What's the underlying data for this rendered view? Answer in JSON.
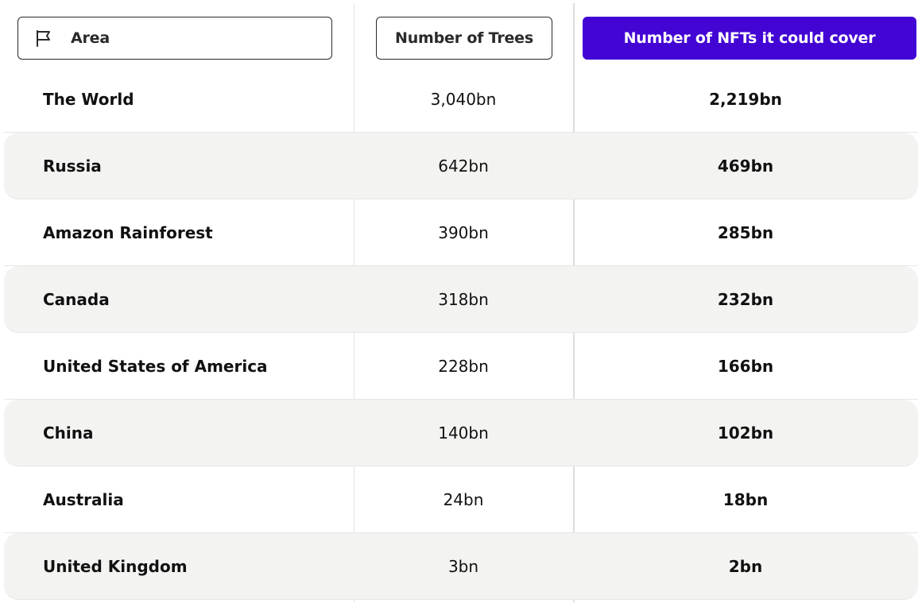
{
  "header": {
    "area_label": "Area",
    "area_icon": "flag-icon",
    "trees_label": "Number of Trees",
    "nfts_label": "Number of NFTs it could cover",
    "accent_color": "#4305d4"
  },
  "rows": [
    {
      "area": "The World",
      "trees": "3,040bn",
      "nfts": "2,219bn"
    },
    {
      "area": "Russia",
      "trees": "642bn",
      "nfts": "469bn"
    },
    {
      "area": "Amazon Rainforest",
      "trees": "390bn",
      "nfts": "285bn"
    },
    {
      "area": "Canada",
      "trees": "318bn",
      "nfts": "232bn"
    },
    {
      "area": "United States of America",
      "trees": "228bn",
      "nfts": "166bn"
    },
    {
      "area": "China",
      "trees": "140bn",
      "nfts": "102bn"
    },
    {
      "area": "Australia",
      "trees": "24bn",
      "nfts": "18bn"
    },
    {
      "area": "United Kingdom",
      "trees": "3bn",
      "nfts": "2bn"
    }
  ]
}
